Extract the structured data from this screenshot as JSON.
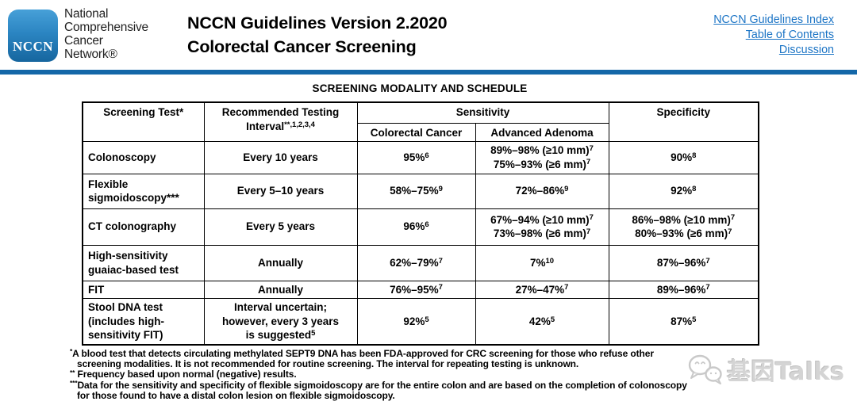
{
  "header": {
    "logo_text": "NCCN",
    "org_lines": [
      "National",
      "Comprehensive",
      "Cancer",
      "Network®"
    ],
    "title_line1": "NCCN Guidelines Version 2.2020",
    "title_line2": "Colorectal Cancer Screening",
    "links": [
      "NCCN Guidelines Index",
      "Table of Contents",
      "Discussion"
    ],
    "colors": {
      "link_blue": "#1b74c5",
      "rule_blue": "#1467a8",
      "logo_blue": "#2b85c2"
    }
  },
  "section_title": "SCREENING MODALITY AND SCHEDULE",
  "table": {
    "headers": {
      "screening_test": "Screening Test*",
      "interval": "Recommended Testing Interval^{**,1,2,3,4}",
      "sensitivity": "Sensitivity",
      "colorectal_cancer": "Colorectal Cancer",
      "advanced_adenoma": "Advanced Adenoma",
      "specificity": "Specificity"
    },
    "rows": [
      {
        "test": "Colonoscopy",
        "interval": "Every 10 years",
        "sens_crc": "95%^{6}",
        "sens_adenoma": "89%–98% (≥10 mm)^{7}\n75%–93% (≥6 mm)^{7}",
        "specificity": "90%^{8}"
      },
      {
        "test": "Flexible\nsigmoidoscopy***",
        "interval": "Every 5–10 years",
        "sens_crc": "58%–75%^{9}",
        "sens_adenoma": "72%–86%^{9}",
        "specificity": "92%^{8}"
      },
      {
        "test": "CT colonography",
        "interval": "Every 5 years",
        "sens_crc": "96%^{6}",
        "sens_adenoma": "67%–94% (≥10 mm)^{7}\n73%–98% (≥6 mm)^{7}",
        "specificity": "86%–98% (≥10 mm)^{7}\n80%–93% (≥6 mm)^{7}"
      },
      {
        "test": "High-sensitivity\nguaiac-based test",
        "interval": "Annually",
        "sens_crc": "62%–79%^{7}",
        "sens_adenoma": "7%^{10}",
        "specificity": "87%–96%^{7}"
      },
      {
        "test": "FIT",
        "interval": "Annually",
        "sens_crc": "76%–95%^{7}",
        "sens_adenoma": "27%–47%^{7}",
        "specificity": "89%–96%^{7}"
      },
      {
        "test": "Stool DNA test\n(includes high-\nsensitivity FIT)",
        "interval": "Interval uncertain;\nhowever, every 3 years\nis suggested^{5}",
        "sens_crc": "92%^{5}",
        "sens_adenoma": "42%^{5}",
        "specificity": "87%^{5}"
      }
    ]
  },
  "footnotes": [
    "^{*}A blood test that detects circulating methylated SEPT9 DNA has been FDA-approved for CRC screening for those who refuse other\nscreening modalities. It is not recommended for routine screening. The interval for repeating testing is unknown.",
    "^{**} Frequency based upon normal (negative) results.",
    "^{***}Data for the sensitivity and specificity of flexible sigmoidoscopy are for the entire colon and are based on the completion of colonoscopy\nfor those found to have a distal colon lesion on flexible sigmoidoscopy."
  ],
  "watermark": {
    "text": "基因Talks",
    "icon": "wechat-chat-bubbles"
  }
}
